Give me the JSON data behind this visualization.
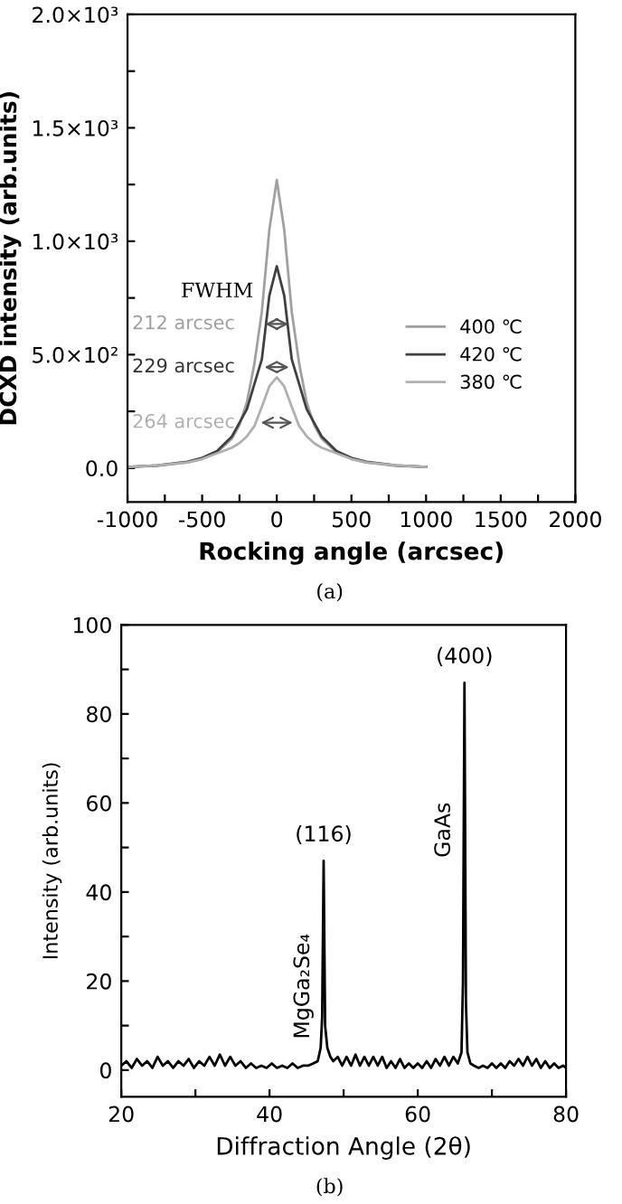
{
  "chart_data": [
    {
      "type": "line",
      "xlabel": "Rocking angle (arcsec)",
      "ylabel": "DCXD intensity (arb.units)",
      "x": [
        -1000,
        -800,
        -600,
        -500,
        -400,
        -300,
        -250,
        -200,
        -150,
        -100,
        -50,
        0,
        50,
        100,
        150,
        200,
        250,
        300,
        400,
        500,
        600,
        800,
        1000
      ],
      "series": [
        {
          "name": "400 ℃",
          "color": "#a0a0a0",
          "values": [
            5,
            10,
            25,
            40,
            70,
            130,
            190,
            290,
            460,
            690,
            1050,
            1270,
            1050,
            690,
            460,
            290,
            190,
            130,
            70,
            40,
            25,
            10,
            5
          ]
        },
        {
          "name": "420 ℃",
          "color": "#404040",
          "values": [
            5,
            12,
            28,
            45,
            75,
            140,
            200,
            260,
            370,
            480,
            760,
            890,
            760,
            480,
            370,
            260,
            200,
            140,
            75,
            45,
            28,
            12,
            5
          ]
        },
        {
          "name": "380 ℃",
          "color": "#b0b0b0",
          "values": [
            5,
            12,
            25,
            40,
            65,
            90,
            110,
            140,
            185,
            270,
            360,
            400,
            360,
            270,
            185,
            140,
            110,
            90,
            65,
            40,
            25,
            12,
            5
          ]
        }
      ],
      "xlim": [
        -1000,
        2000
      ],
      "ylim": [
        -150,
        2000
      ],
      "xticks": [
        -1000,
        {
          "value": -750,
          "label": null
        },
        -500,
        {
          "value": -250,
          "label": null
        },
        0,
        {
          "value": 250,
          "label": null
        },
        500,
        {
          "value": 750,
          "label": null
        },
        1000,
        {
          "value": 1250,
          "label": null
        },
        1500,
        {
          "value": 1750,
          "label": null
        },
        2000
      ],
      "yticks": [
        {
          "value": 0,
          "label": "0.0"
        },
        {
          "value": 250,
          "label": null
        },
        {
          "value": 500,
          "label": "5.0×10²"
        },
        {
          "value": 750,
          "label": null
        },
        {
          "value": 1000,
          "label": "1.0×10³"
        },
        {
          "value": 1250,
          "label": null
        },
        {
          "value": 1500,
          "label": "1.5×10³"
        },
        {
          "value": 1750,
          "label": null
        },
        {
          "value": 2000,
          "label": "2.0×10³"
        }
      ],
      "annotations": [
        "FWHM",
        "212 arcsec",
        "229 arcsec",
        "264 arcsec",
        "(a)"
      ],
      "legend": "right",
      "grid": false,
      "marker": "none",
      "line_style": "solid"
    },
    {
      "type": "line",
      "xlabel": "Diffraction Angle (2θ)",
      "ylabel": "Intensity (arb.units)",
      "x": [
        20,
        20.7,
        21.4,
        22.1,
        22.8,
        23.5,
        24.2,
        24.9,
        25.6,
        26.3,
        27,
        27.7,
        28.4,
        29.1,
        29.8,
        30.5,
        31.2,
        31.9,
        32.6,
        33.3,
        34,
        34.7,
        35.4,
        36.1,
        36.8,
        37.5,
        38.2,
        38.9,
        39.6,
        40.3,
        41,
        41.7,
        42.4,
        43.1,
        43.8,
        44.5,
        45.2,
        45.9,
        46.5,
        46.9,
        47.1,
        47.3,
        47.5,
        47.8,
        48.2,
        48.6,
        49.2,
        49.8,
        50.4,
        51,
        51.6,
        52.2,
        52.8,
        53.4,
        54,
        54.6,
        55.2,
        55.8,
        56.4,
        57,
        57.6,
        58.2,
        58.8,
        59.4,
        60,
        60.6,
        61.2,
        61.8,
        62.4,
        63,
        63.6,
        64.2,
        64.8,
        65.4,
        65.9,
        66.1,
        66.3,
        66.5,
        66.7,
        67.1,
        67.6,
        68.2,
        68.8,
        69.4,
        70,
        70.6,
        71.2,
        71.8,
        72.4,
        73,
        73.6,
        74.2,
        74.8,
        75.4,
        76,
        76.6,
        77.2,
        77.8,
        78.4,
        79,
        79.6,
        80
      ],
      "series": [
        {
          "color": "#000000",
          "values": [
            1,
            2,
            0.5,
            2.5,
            1,
            2,
            0.5,
            3,
            1,
            2,
            0.5,
            2,
            1,
            2.5,
            0.5,
            2,
            1,
            3,
            1,
            3.5,
            1,
            3,
            1,
            2,
            0.5,
            1.5,
            0.5,
            1,
            0.5,
            1.5,
            0.5,
            1,
            0.5,
            1.5,
            0.5,
            1,
            1,
            1.5,
            2,
            5,
            12,
            47,
            10,
            5,
            3,
            2,
            3,
            1,
            3,
            1,
            3.5,
            1,
            3,
            1,
            3,
            1,
            3,
            0.5,
            2,
            0.5,
            2.5,
            0.5,
            1.5,
            0.5,
            1.5,
            0.5,
            2,
            0.5,
            2.5,
            1,
            3,
            1,
            3,
            1.5,
            4,
            20,
            87,
            15,
            4,
            1.5,
            1,
            0.5,
            1,
            0.5,
            1.5,
            0.5,
            1.5,
            0.5,
            2,
            1,
            2.5,
            1,
            3,
            1,
            2.5,
            0.5,
            2,
            0.5,
            1.5,
            0.5,
            1,
            0.5
          ]
        }
      ],
      "xlim": [
        20,
        80
      ],
      "ylim": [
        -6,
        100
      ],
      "xticks": [
        20,
        {
          "value": 30,
          "label": null
        },
        40,
        {
          "value": 50,
          "label": null
        },
        60,
        {
          "value": 70,
          "label": null
        },
        80
      ],
      "yticks": [
        0,
        {
          "value": 10,
          "label": null
        },
        20,
        {
          "value": 30,
          "label": null
        },
        40,
        {
          "value": 50,
          "label": null
        },
        60,
        {
          "value": 70,
          "label": null
        },
        80,
        {
          "value": 90,
          "label": null
        },
        100
      ],
      "annotations": [
        {
          "text": "(116)",
          "x": 47.3,
          "y": 47
        },
        {
          "text": "(400)",
          "x": 66.3,
          "y": 87
        },
        "MgGa₂Se₄",
        "GaAs",
        "(b)"
      ],
      "grid": false,
      "marker": "none",
      "line_style": "solid"
    }
  ]
}
